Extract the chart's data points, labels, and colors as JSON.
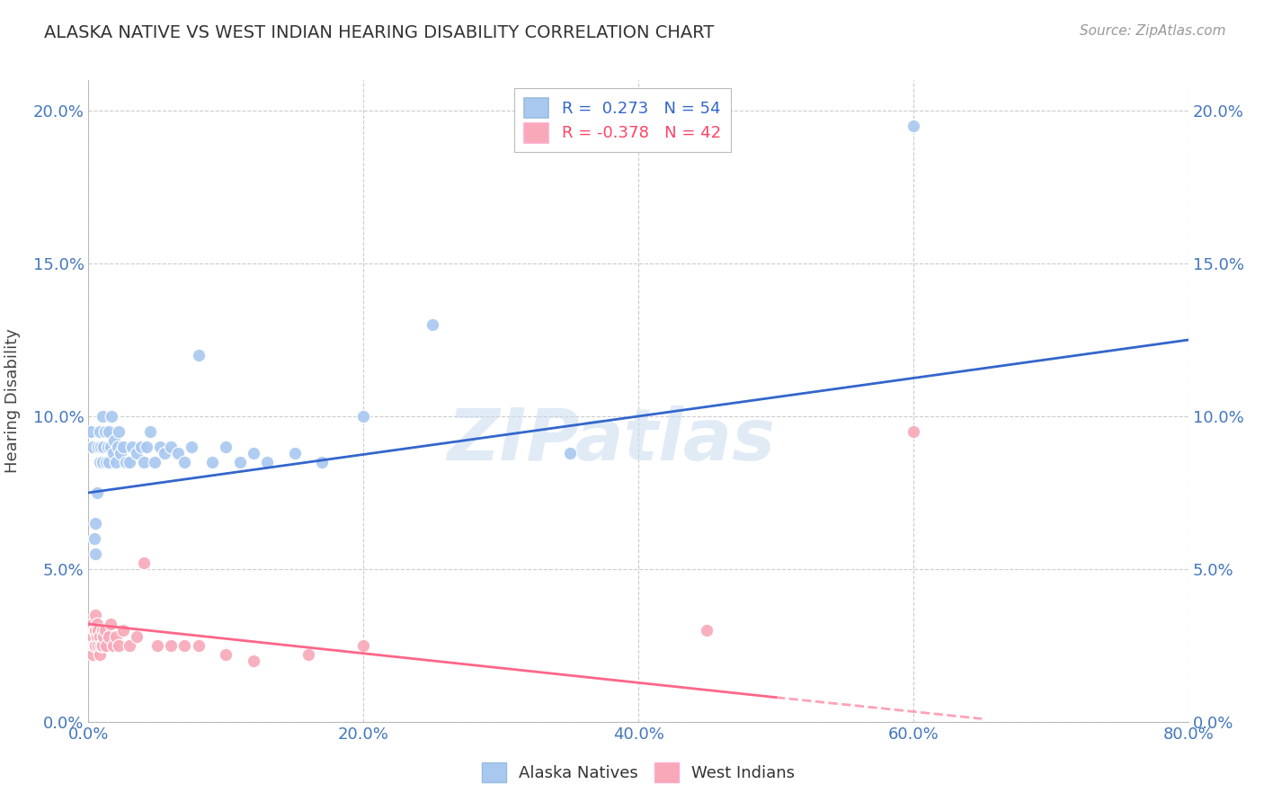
{
  "title": "ALASKA NATIVE VS WEST INDIAN HEARING DISABILITY CORRELATION CHART",
  "source": "Source: ZipAtlas.com",
  "ylabel": "Hearing Disability",
  "xlim": [
    0.0,
    0.82
  ],
  "ylim": [
    -0.005,
    0.215
  ],
  "plot_xlim": [
    0.0,
    0.8
  ],
  "plot_ylim": [
    0.0,
    0.21
  ],
  "xtick_vals": [
    0.0,
    0.2,
    0.4,
    0.6,
    0.8
  ],
  "ytick_vals": [
    0.0,
    0.05,
    0.1,
    0.15,
    0.2
  ],
  "xlabel_ticks": [
    "0.0%",
    "20.0%",
    "40.0%",
    "60.0%",
    "80.0%"
  ],
  "ylabel_ticks": [
    "0.0%",
    "5.0%",
    "10.0%",
    "15.0%",
    "20.0%"
  ],
  "alaska_R": 0.273,
  "alaska_N": 54,
  "west_R": -0.378,
  "west_N": 42,
  "alaska_color": "#A8C8F0",
  "west_color": "#F8A8B8",
  "alaska_line_color": "#3366CC",
  "west_line_color": "#FF6688",
  "watermark": "ZIPatlas",
  "alaska_scatter_x": [
    0.002,
    0.003,
    0.004,
    0.005,
    0.005,
    0.006,
    0.007,
    0.008,
    0.008,
    0.009,
    0.01,
    0.01,
    0.011,
    0.012,
    0.013,
    0.014,
    0.015,
    0.015,
    0.016,
    0.017,
    0.018,
    0.019,
    0.02,
    0.021,
    0.022,
    0.023,
    0.025,
    0.027,
    0.03,
    0.032,
    0.035,
    0.038,
    0.04,
    0.042,
    0.045,
    0.048,
    0.052,
    0.055,
    0.06,
    0.065,
    0.07,
    0.075,
    0.08,
    0.09,
    0.1,
    0.11,
    0.12,
    0.13,
    0.15,
    0.17,
    0.2,
    0.25,
    0.35,
    0.6
  ],
  "alaska_scatter_y": [
    0.095,
    0.09,
    0.06,
    0.055,
    0.065,
    0.075,
    0.09,
    0.085,
    0.095,
    0.09,
    0.085,
    0.1,
    0.09,
    0.095,
    0.085,
    0.09,
    0.085,
    0.095,
    0.09,
    0.1,
    0.088,
    0.092,
    0.085,
    0.09,
    0.095,
    0.088,
    0.09,
    0.085,
    0.085,
    0.09,
    0.088,
    0.09,
    0.085,
    0.09,
    0.095,
    0.085,
    0.09,
    0.088,
    0.09,
    0.088,
    0.085,
    0.09,
    0.12,
    0.085,
    0.09,
    0.085,
    0.088,
    0.085,
    0.088,
    0.085,
    0.1,
    0.13,
    0.088,
    0.195
  ],
  "west_scatter_x": [
    0.001,
    0.002,
    0.002,
    0.003,
    0.003,
    0.003,
    0.004,
    0.004,
    0.005,
    0.005,
    0.005,
    0.006,
    0.006,
    0.007,
    0.007,
    0.008,
    0.008,
    0.009,
    0.01,
    0.01,
    0.011,
    0.012,
    0.013,
    0.015,
    0.016,
    0.018,
    0.02,
    0.022,
    0.025,
    0.03,
    0.035,
    0.04,
    0.05,
    0.06,
    0.07,
    0.08,
    0.1,
    0.12,
    0.16,
    0.2,
    0.45,
    0.6
  ],
  "west_scatter_y": [
    0.028,
    0.03,
    0.025,
    0.032,
    0.028,
    0.022,
    0.03,
    0.025,
    0.03,
    0.025,
    0.035,
    0.028,
    0.032,
    0.025,
    0.03,
    0.022,
    0.028,
    0.025,
    0.03,
    0.025,
    0.028,
    0.03,
    0.025,
    0.028,
    0.032,
    0.025,
    0.028,
    0.025,
    0.03,
    0.025,
    0.028,
    0.052,
    0.025,
    0.025,
    0.025,
    0.025,
    0.022,
    0.02,
    0.022,
    0.025,
    0.03,
    0.095
  ],
  "alaska_line_x0": 0.0,
  "alaska_line_x1": 0.8,
  "alaska_line_y0": 0.075,
  "alaska_line_y1": 0.125,
  "west_line_x0": 0.0,
  "west_line_x1": 0.5,
  "west_line_y0": 0.032,
  "west_line_y1": 0.008,
  "west_line_dash_x0": 0.5,
  "west_line_dash_x1": 0.65,
  "west_line_dash_y0": 0.008,
  "west_line_dash_y1": 0.001
}
